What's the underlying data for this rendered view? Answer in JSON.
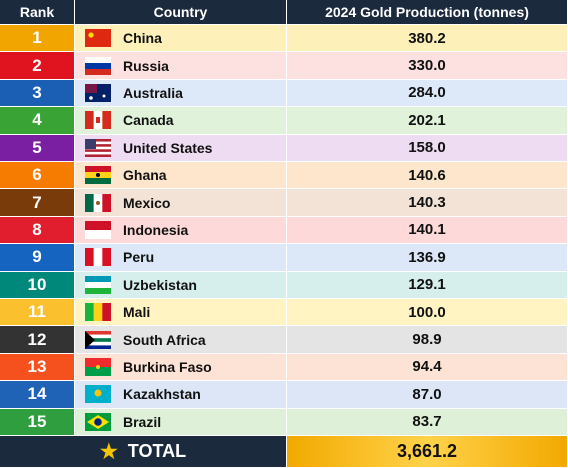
{
  "header": {
    "rank": "Rank",
    "country": "Country",
    "production": "2024 Gold Production (tonnes)"
  },
  "rows": [
    [
      "1",
      "China",
      "380.2"
    ],
    [
      "2",
      "Russia",
      "330.0"
    ],
    [
      "3",
      "Australia",
      "284.0"
    ],
    [
      "4",
      "Canada",
      "202.1"
    ],
    [
      "5",
      "United States",
      "158.0"
    ],
    [
      "6",
      "Ghana",
      "140.6"
    ],
    [
      "7",
      "Mexico",
      "140.3"
    ],
    [
      "8",
      "Indonesia",
      "140.1"
    ],
    [
      "9",
      "Peru",
      "136.9"
    ],
    [
      "10",
      "Uzbekistan",
      "129.1"
    ],
    [
      "11",
      "Mali",
      "100.0"
    ],
    [
      "12",
      "South Africa",
      "98.9"
    ],
    [
      "13",
      "Burkina Faso",
      "94.4"
    ],
    [
      "14",
      "Kazakhstan",
      "87.0"
    ],
    [
      "15",
      "Brazil",
      "83.7"
    ]
  ],
  "total": {
    "label": "TOTAL",
    "value": "3,661.2"
  }
}
